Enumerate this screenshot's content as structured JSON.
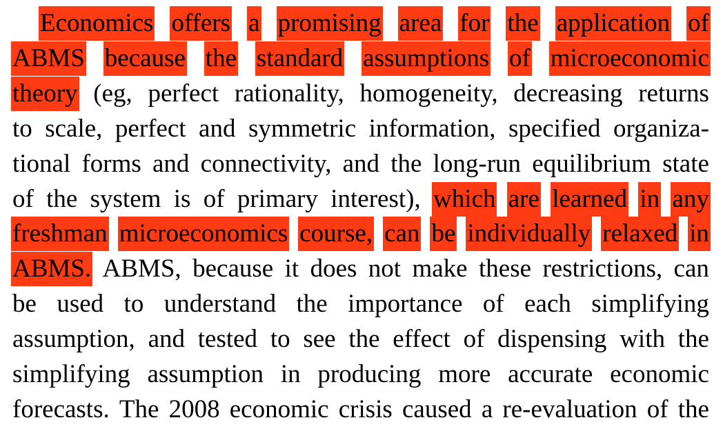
{
  "paragraph": {
    "lines": [
      {
        "segments": [
          {
            "text": "Economics offers a promising area for the application of",
            "highlight": true
          }
        ]
      },
      {
        "segments": [
          {
            "text": "ABMS because the standard assumptions of microeconomic",
            "highlight": true
          }
        ]
      },
      {
        "segments": [
          {
            "text": "theory",
            "highlight": true
          },
          {
            "text": " (eg, perfect rationality, homogeneity, decreasing returns",
            "highlight": false
          }
        ]
      },
      {
        "segments": [
          {
            "text": "to scale, perfect and symmetric information, specified organiza-",
            "highlight": false
          }
        ]
      },
      {
        "segments": [
          {
            "text": "tional forms and connectivity, and the long-run equilibrium state",
            "highlight": false
          }
        ]
      },
      {
        "segments": [
          {
            "text": "of the system is of primary interest), ",
            "highlight": false
          },
          {
            "text": "which are learned in any",
            "highlight": true
          }
        ]
      },
      {
        "segments": [
          {
            "text": "freshman microeconomics course, can be individually relaxed in",
            "highlight": true
          }
        ]
      },
      {
        "segments": [
          {
            "text": "ABMS.",
            "highlight": true
          },
          {
            "text": " ABMS, because it does not make these restrictions, can",
            "highlight": false
          }
        ]
      },
      {
        "segments": [
          {
            "text": "be used to understand the importance of each simplifying",
            "highlight": false
          }
        ]
      },
      {
        "segments": [
          {
            "text": "assumption, and tested to see the effect of dispensing with the",
            "highlight": false
          }
        ]
      },
      {
        "segments": [
          {
            "text": "simplifying assumption in producing more accurate economic",
            "highlight": false
          }
        ]
      },
      {
        "segments": [
          {
            "text": "forecasts. The 2008 economic crisis caused a re-evaluation of the",
            "highlight": false
          }
        ]
      }
    ]
  },
  "colors": {
    "highlight": "#ff3b14",
    "text": "#000000",
    "background": "#ffffff"
  }
}
